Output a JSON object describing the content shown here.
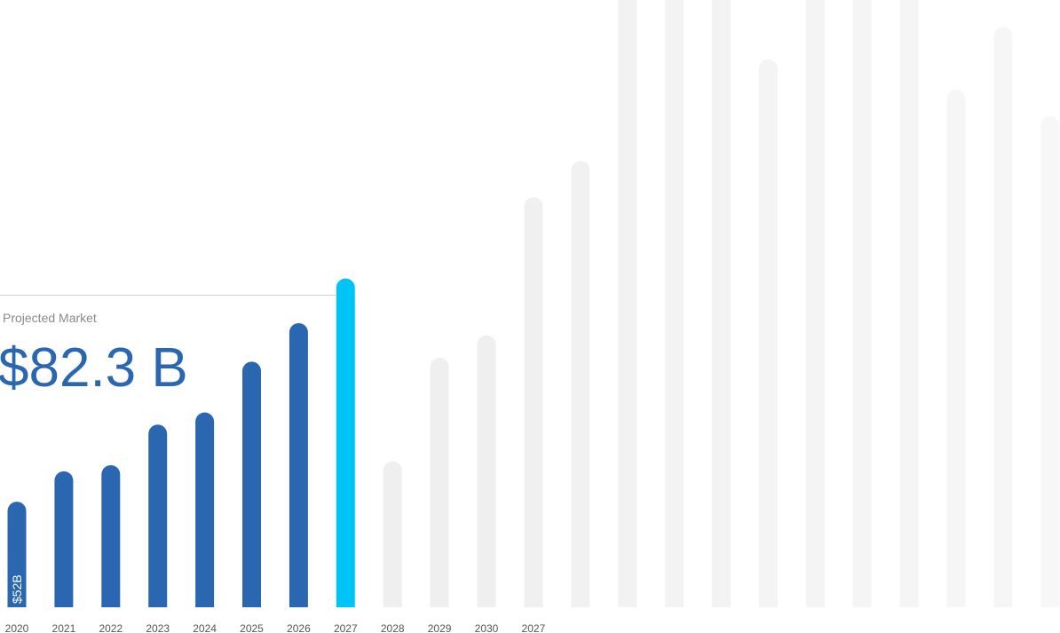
{
  "chart_data": {
    "type": "bar",
    "annotation": {
      "title": "Projected Market",
      "label": "$82.3 B"
    },
    "categories": [
      "2020",
      "2021",
      "2022",
      "2023",
      "2024",
      "2025",
      "2026",
      "2027",
      "2028",
      "2029",
      "2030",
      "2027",
      null,
      null,
      null,
      null,
      null,
      null,
      null,
      null,
      null,
      null,
      null
    ],
    "values": [
      52,
      67,
      70,
      90,
      96,
      121,
      140,
      162,
      72,
      123,
      134,
      202,
      220,
      304,
      304,
      304,
      270,
      304,
      304,
      304,
      255,
      286,
      242
    ],
    "value_labels": [
      "$52B",
      null,
      null,
      null,
      null,
      null,
      null,
      null,
      null,
      null,
      null,
      null,
      null,
      null,
      null,
      null,
      null,
      null,
      null,
      null,
      null,
      null,
      null
    ],
    "colors": [
      "#2b67b0",
      "#2b67b0",
      "#2b67b0",
      "#2b67b0",
      "#2b67b0",
      "#2b67b0",
      "#2b67b0",
      "#00c4f5",
      "#efefef",
      "#efefef",
      "#efefef",
      "#f0f0f0",
      "#f1f1f1",
      "#f2f2f2",
      "#f3f3f3",
      "#f3f3f3",
      "#f4f4f4",
      "#f4f4f4",
      "#f5f5f5",
      "#f5f5f5",
      "#f6f6f6",
      "#f6f6f6",
      "#f7f7f7"
    ],
    "ylim": [
      0,
      304
    ]
  }
}
